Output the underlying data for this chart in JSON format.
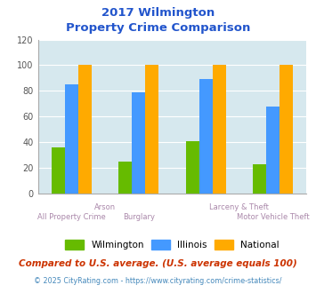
{
  "title_line1": "2017 Wilmington",
  "title_line2": "Property Crime Comparison",
  "bar_groups": [
    {
      "label": "All Property Crime",
      "wilmington": 36,
      "illinois": 85,
      "national": 100
    },
    {
      "label": "Arson",
      "wilmington": 25,
      "illinois": 79,
      "national": 100
    },
    {
      "label": "Larceny & Theft",
      "wilmington": 41,
      "illinois": 89,
      "national": 100
    },
    {
      "label": "Motor Vehicle Theft",
      "wilmington": 23,
      "illinois": 68,
      "national": 100
    }
  ],
  "color_wilmington": "#66bb00",
  "color_illinois": "#4499ff",
  "color_national": "#ffaa00",
  "ylim": [
    0,
    120
  ],
  "yticks": [
    0,
    20,
    40,
    60,
    80,
    100,
    120
  ],
  "bg_color": "#d6e8ee",
  "title_color": "#2255cc",
  "label_color_top": "#aa88aa",
  "label_color_bottom": "#aa88aa",
  "legend_label_wilmington": "Wilmington",
  "legend_label_illinois": "Illinois",
  "legend_label_national": "National",
  "footnote1": "Compared to U.S. average. (U.S. average equals 100)",
  "footnote2": "© 2025 CityRating.com - https://www.cityrating.com/crime-statistics/",
  "footnote1_color": "#cc3300",
  "footnote2_color": "#4488bb"
}
